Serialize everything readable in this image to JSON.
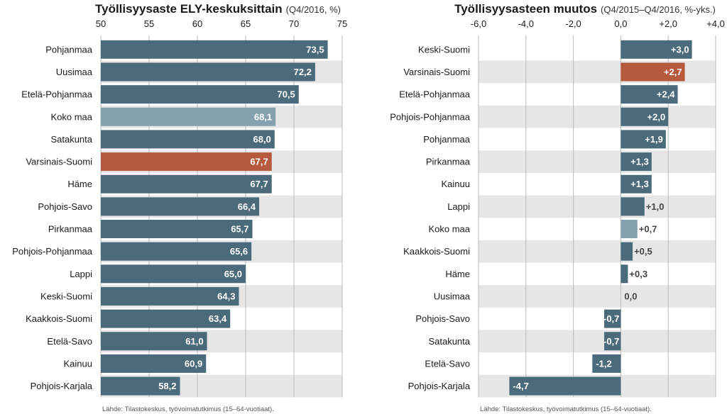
{
  "colors": {
    "bar": "#4b6b7b",
    "highlight": "#b55a3c",
    "average": "#86a1ae",
    "stripe": "#e6e6e6",
    "grid": "#bbbbbb"
  },
  "chart_data": [
    {
      "type": "bar",
      "orientation": "horizontal",
      "title": "Työllisyysaste ELY-keskuksittain",
      "subtitle": "(Q4/2016, %)",
      "xlim": [
        50,
        75
      ],
      "ticks": [
        50,
        55,
        60,
        65,
        70,
        75
      ],
      "tick_labels": [
        "50",
        "55",
        "60",
        "65",
        "70",
        "75"
      ],
      "grid": true,
      "categories": [
        "Pohjanmaa",
        "Uusimaa",
        "Etelä-Pohjanmaa",
        "Koko maa",
        "Satakunta",
        "Varsinais-Suomi",
        "Häme",
        "Pohjois-Savo",
        "Pirkanmaa",
        "Pohjois-Pohjanmaa",
        "Lappi",
        "Keski-Suomi",
        "Kaakkois-Suomi",
        "Etelä-Savo",
        "Kainuu",
        "Pohjois-Karjala"
      ],
      "values": [
        73.5,
        72.2,
        70.5,
        68.1,
        68.0,
        67.7,
        67.7,
        66.4,
        65.7,
        65.6,
        65.0,
        64.3,
        63.4,
        61.0,
        60.9,
        58.2
      ],
      "value_labels": [
        "73,5",
        "72,2",
        "70,5",
        "68,1",
        "68,0",
        "67,7",
        "67,7",
        "66,4",
        "65,7",
        "65,6",
        "65,0",
        "64,3",
        "63,4",
        "61,0",
        "60,9",
        "58,2"
      ],
      "highlight": "Varsinais-Suomi",
      "average": "Koko maa",
      "source": "Lähde: Tilastokeskus, työvoimatutkimus (15–64-vuotiaat)."
    },
    {
      "type": "bar",
      "orientation": "horizontal",
      "title": "Työllisyysasteen muutos",
      "subtitle": "(Q4/2015–Q4/2016, %-yks.)",
      "xlim": [
        -6.0,
        4.0
      ],
      "ticks": [
        -6,
        -4,
        -2,
        0,
        2,
        4
      ],
      "tick_labels": [
        "-6,0",
        "-4,0",
        "-2,0",
        "0,0",
        "+2,0",
        "+4,0"
      ],
      "grid": true,
      "categories": [
        "Keski-Suomi",
        "Varsinais-Suomi",
        "Etelä-Pohjanmaa",
        "Pohjois-Pohjanmaa",
        "Pohjanmaa",
        "Pirkanmaa",
        "Kainuu",
        "Lappi",
        "Koko maa",
        "Kaakkois-Suomi",
        "Häme",
        "Uusimaa",
        "Pohjois-Savo",
        "Satakunta",
        "Etelä-Savo",
        "Pohjois-Karjala"
      ],
      "values": [
        3.0,
        2.7,
        2.4,
        2.0,
        1.9,
        1.3,
        1.3,
        1.0,
        0.7,
        0.5,
        0.3,
        0.0,
        -0.7,
        -0.7,
        -1.2,
        -4.7
      ],
      "value_labels": [
        "+3,0",
        "+2,7",
        "+2,4",
        "+2,0",
        "+1,9",
        "+1,3",
        "+1,3",
        "+1,0",
        "+0,7",
        "+0,5",
        "+0,3",
        "0,0",
        "-0,7",
        "-0,7",
        "-1,2",
        "-4,7"
      ],
      "highlight": "Varsinais-Suomi",
      "average": "Koko maa",
      "source": "Lähde: Tilastokeskus, työvoimatutkimus (15–64-vuotiaat)."
    }
  ]
}
